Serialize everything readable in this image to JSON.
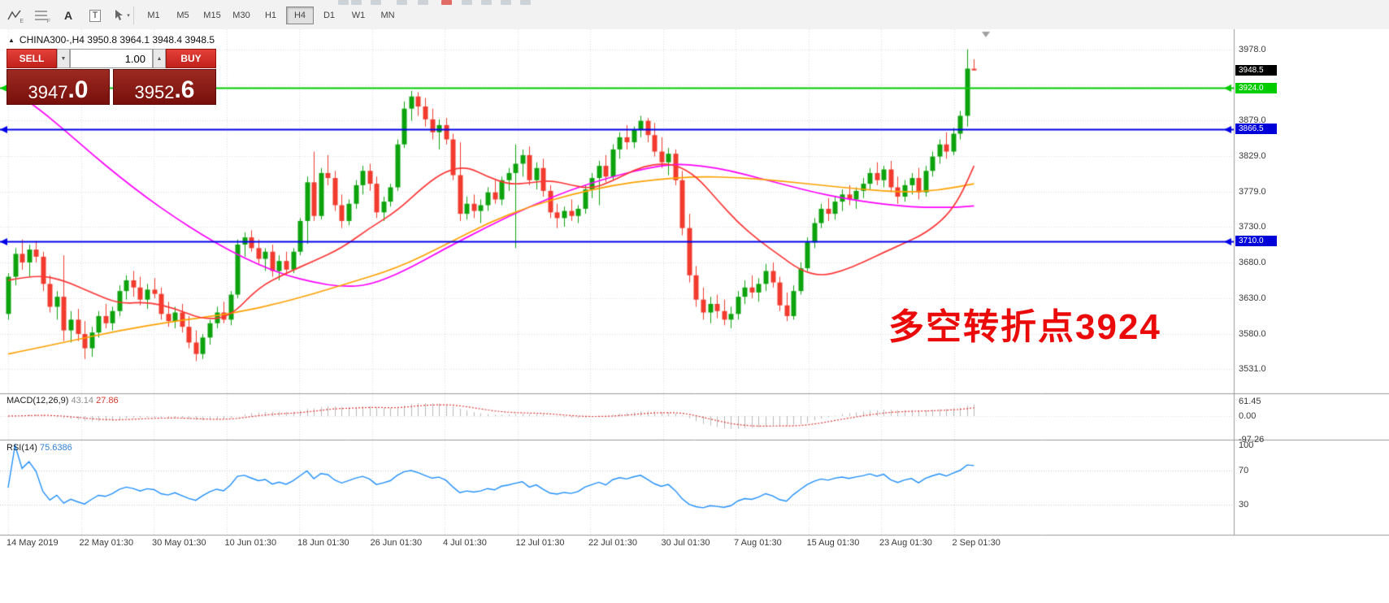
{
  "toolbar": {
    "icons": [
      {
        "name": "indicators",
        "glyph": "E"
      },
      {
        "name": "fibonacci",
        "glyph": "F"
      },
      {
        "name": "text-label",
        "glyph": "A"
      },
      {
        "name": "text-box",
        "glyph": "T"
      },
      {
        "name": "cursor",
        "glyph": ""
      }
    ],
    "dropdown_caret": "▾",
    "timeframes": [
      {
        "label": "M1",
        "active": false
      },
      {
        "label": "M5",
        "active": false
      },
      {
        "label": "M15",
        "active": false
      },
      {
        "label": "M30",
        "active": false
      },
      {
        "label": "H1",
        "active": false
      },
      {
        "label": "H4",
        "active": true
      },
      {
        "label": "D1",
        "active": false
      },
      {
        "label": "W1",
        "active": false
      },
      {
        "label": "MN",
        "active": false
      }
    ]
  },
  "chart": {
    "collapse_glyph": "▲",
    "symbol_header": "CHINA300-,H4  3950.8 3964.1 3948.4 3948.5",
    "trade_panel": {
      "sell_label": "SELL",
      "buy_label": "BUY",
      "volume": "1.00",
      "volume_dropdown_glyph": "▼",
      "volume_up_glyph": "▲",
      "sell_price_main": "3947",
      "sell_price_big": ".0",
      "buy_price_main": "3952",
      "buy_price_big": ".6"
    },
    "annotation": {
      "text": "多空转折点3924",
      "color": "#ea0a0a"
    },
    "price_axis_ticks": [
      "3978.0",
      "3879.0",
      "3829.0",
      "3779.0",
      "3730.0",
      "3680.0",
      "3630.0",
      "3580.0",
      "3531.0"
    ],
    "price_badges": [
      {
        "label": "3948.5",
        "price": 3948.5,
        "bg": "#000000"
      },
      {
        "label": "3924.0",
        "price": 3924.0,
        "bg": "#00cc00"
      },
      {
        "label": "3866.5",
        "price": 3866.5,
        "bg": "#0000d8"
      },
      {
        "label": "3710.0",
        "price": 3710.0,
        "bg": "#0000d8"
      }
    ],
    "hlines": [
      {
        "price": 3924.0,
        "color": "#00cc00",
        "width": 2
      },
      {
        "price": 3866.5,
        "color": "#0000e8",
        "width": 2
      },
      {
        "price": 3710.0,
        "color": "#0000e8",
        "width": 2
      }
    ]
  },
  "macd": {
    "label": "MACD(12,26,9)",
    "value_main": "43.14",
    "value_signal": "27.86",
    "axis": [
      "61.45",
      "0.00",
      "-97.26"
    ]
  },
  "rsi": {
    "label": "RSI(14)",
    "value": "75.6386",
    "axis": [
      "100",
      "70",
      "30"
    ],
    "levels": [
      70,
      30
    ]
  },
  "time_axis": [
    "14 May 2019",
    "22 May 01:30",
    "30 May 01:30",
    "10 Jun 01:30",
    "18 Jun 01:30",
    "26 Jun 01:30",
    "4 Jul 01:30",
    "12 Jul 01:30",
    "22 Jul 01:30",
    "30 Jul 01:30",
    "7 Aug 01:30",
    "15 Aug 01:30",
    "23 Aug 01:30",
    "2 Sep 01:30"
  ],
  "chart_data": {
    "type": "candlestick",
    "title": "CHINA300- H4",
    "price_range": [
      3497,
      4006
    ],
    "grid_prices": [
      3978,
      3929,
      3879,
      3829,
      3779,
      3730,
      3680,
      3630,
      3580,
      3531
    ],
    "colors": {
      "up": "#0ca30c",
      "down": "#f23b2e",
      "grid": "#d9d9d9",
      "ma_long": "#ff00ff",
      "ma_medium": "#ffa000",
      "ma_fast": "#ff3535",
      "macd_hist": "#b8b8b8",
      "macd_signal": "#e03535",
      "rsi": "#1f8fff",
      "separator": "#9a9a9a",
      "shift_marker": "#a0a0a0"
    },
    "macd_params": {
      "fast": 12,
      "slow": 26,
      "signal": 9
    },
    "rsi_period": 14,
    "candles": [
      [
        3608,
        3665,
        3600,
        3660
      ],
      [
        3660,
        3700,
        3648,
        3692
      ],
      [
        3692,
        3712,
        3670,
        3680
      ],
      [
        3680,
        3705,
        3660,
        3698
      ],
      [
        3698,
        3710,
        3680,
        3688
      ],
      [
        3688,
        3695,
        3640,
        3650
      ],
      [
        3650,
        3662,
        3610,
        3618
      ],
      [
        3618,
        3640,
        3600,
        3632
      ],
      [
        3632,
        3690,
        3570,
        3585
      ],
      [
        3585,
        3612,
        3568,
        3600
      ],
      [
        3600,
        3615,
        3570,
        3580
      ],
      [
        3580,
        3598,
        3545,
        3560
      ],
      [
        3560,
        3590,
        3548,
        3582
      ],
      [
        3582,
        3612,
        3575,
        3605
      ],
      [
        3605,
        3622,
        3588,
        3595
      ],
      [
        3595,
        3618,
        3585,
        3612
      ],
      [
        3612,
        3648,
        3605,
        3640
      ],
      [
        3640,
        3662,
        3628,
        3655
      ],
      [
        3655,
        3668,
        3632,
        3645
      ],
      [
        3645,
        3660,
        3620,
        3628
      ],
      [
        3628,
        3650,
        3615,
        3642
      ],
      [
        3642,
        3658,
        3630,
        3636
      ],
      [
        3636,
        3645,
        3600,
        3608
      ],
      [
        3608,
        3625,
        3590,
        3598
      ],
      [
        3598,
        3618,
        3588,
        3610
      ],
      [
        3610,
        3622,
        3582,
        3590
      ],
      [
        3590,
        3605,
        3560,
        3568
      ],
      [
        3568,
        3585,
        3542,
        3552
      ],
      [
        3552,
        3580,
        3545,
        3575
      ],
      [
        3575,
        3600,
        3565,
        3595
      ],
      [
        3595,
        3618,
        3588,
        3610
      ],
      [
        3610,
        3625,
        3595,
        3600
      ],
      [
        3600,
        3640,
        3592,
        3635
      ],
      [
        3635,
        3712,
        3630,
        3705
      ],
      [
        3705,
        3722,
        3688,
        3715
      ],
      [
        3715,
        3725,
        3695,
        3700
      ],
      [
        3700,
        3712,
        3678,
        3685
      ],
      [
        3685,
        3700,
        3668,
        3695
      ],
      [
        3695,
        3705,
        3660,
        3668
      ],
      [
        3668,
        3690,
        3655,
        3682
      ],
      [
        3682,
        3695,
        3662,
        3670
      ],
      [
        3670,
        3700,
        3665,
        3695
      ],
      [
        3695,
        3742,
        3690,
        3738
      ],
      [
        3738,
        3800,
        3706,
        3792
      ],
      [
        3792,
        3835,
        3738,
        3745
      ],
      [
        3745,
        3812,
        3740,
        3805
      ],
      [
        3805,
        3830,
        3788,
        3798
      ],
      [
        3798,
        3808,
        3752,
        3760
      ],
      [
        3760,
        3775,
        3728,
        3738
      ],
      [
        3738,
        3768,
        3732,
        3762
      ],
      [
        3762,
        3795,
        3755,
        3788
      ],
      [
        3788,
        3815,
        3775,
        3808
      ],
      [
        3808,
        3818,
        3780,
        3790
      ],
      [
        3790,
        3800,
        3742,
        3750
      ],
      [
        3750,
        3772,
        3738,
        3765
      ],
      [
        3765,
        3790,
        3758,
        3785
      ],
      [
        3785,
        3852,
        3780,
        3845
      ],
      [
        3845,
        3905,
        3840,
        3895
      ],
      [
        3895,
        3920,
        3878,
        3912
      ],
      [
        3912,
        3918,
        3885,
        3898
      ],
      [
        3898,
        3910,
        3870,
        3880
      ],
      [
        3880,
        3895,
        3852,
        3862
      ],
      [
        3862,
        3880,
        3838,
        3872
      ],
      [
        3872,
        3882,
        3845,
        3852
      ],
      [
        3852,
        3860,
        3795,
        3802
      ],
      [
        3802,
        3848,
        3738,
        3748
      ],
      [
        3748,
        3772,
        3740,
        3762
      ],
      [
        3762,
        3775,
        3742,
        3752
      ],
      [
        3752,
        3768,
        3735,
        3760
      ],
      [
        3760,
        3785,
        3752,
        3778
      ],
      [
        3778,
        3795,
        3762,
        3768
      ],
      [
        3768,
        3800,
        3760,
        3795
      ],
      [
        3795,
        3812,
        3780,
        3805
      ],
      [
        3805,
        3845,
        3700,
        3818
      ],
      [
        3818,
        3838,
        3800,
        3830
      ],
      [
        3830,
        3842,
        3788,
        3795
      ],
      [
        3795,
        3820,
        3782,
        3812
      ],
      [
        3812,
        3825,
        3772,
        3780
      ],
      [
        3780,
        3788,
        3742,
        3750
      ],
      [
        3750,
        3762,
        3728,
        3742
      ],
      [
        3742,
        3758,
        3730,
        3752
      ],
      [
        3752,
        3768,
        3738,
        3745
      ],
      [
        3745,
        3760,
        3735,
        3755
      ],
      [
        3755,
        3788,
        3748,
        3782
      ],
      [
        3782,
        3805,
        3770,
        3798
      ],
      [
        3798,
        3822,
        3760,
        3815
      ],
      [
        3815,
        3830,
        3792,
        3800
      ],
      [
        3800,
        3845,
        3795,
        3838
      ],
      [
        3838,
        3862,
        3825,
        3855
      ],
      [
        3855,
        3872,
        3838,
        3848
      ],
      [
        3848,
        3870,
        3840,
        3865
      ],
      [
        3865,
        3885,
        3855,
        3878
      ],
      [
        3878,
        3882,
        3848,
        3858
      ],
      [
        3858,
        3875,
        3828,
        3835
      ],
      [
        3835,
        3855,
        3812,
        3820
      ],
      [
        3820,
        3840,
        3802,
        3832
      ],
      [
        3832,
        3838,
        3788,
        3795
      ],
      [
        3795,
        3808,
        3718,
        3728
      ],
      [
        3728,
        3748,
        3652,
        3662
      ],
      [
        3662,
        3675,
        3618,
        3628
      ],
      [
        3628,
        3645,
        3600,
        3610
      ],
      [
        3610,
        3632,
        3595,
        3622
      ],
      [
        3622,
        3635,
        3602,
        3612
      ],
      [
        3612,
        3628,
        3592,
        3600
      ],
      [
        3600,
        3618,
        3588,
        3608
      ],
      [
        3608,
        3640,
        3600,
        3632
      ],
      [
        3632,
        3655,
        3622,
        3645
      ],
      [
        3645,
        3662,
        3630,
        3638
      ],
      [
        3638,
        3658,
        3625,
        3650
      ],
      [
        3650,
        3678,
        3640,
        3668
      ],
      [
        3668,
        3680,
        3645,
        3652
      ],
      [
        3652,
        3660,
        3612,
        3620
      ],
      [
        3620,
        3638,
        3598,
        3605
      ],
      [
        3605,
        3648,
        3600,
        3640
      ],
      [
        3640,
        3680,
        3635,
        3672
      ],
      [
        3672,
        3715,
        3668,
        3708
      ],
      [
        3708,
        3742,
        3700,
        3735
      ],
      [
        3735,
        3762,
        3728,
        3755
      ],
      [
        3755,
        3770,
        3738,
        3748
      ],
      [
        3748,
        3772,
        3740,
        3765
      ],
      [
        3765,
        3782,
        3752,
        3775
      ],
      [
        3775,
        3788,
        3760,
        3768
      ],
      [
        3768,
        3785,
        3755,
        3780
      ],
      [
        3780,
        3798,
        3770,
        3790
      ],
      [
        3790,
        3812,
        3782,
        3805
      ],
      [
        3805,
        3820,
        3788,
        3795
      ],
      [
        3795,
        3815,
        3785,
        3810
      ],
      [
        3810,
        3822,
        3778,
        3785
      ],
      [
        3785,
        3800,
        3762,
        3772
      ],
      [
        3772,
        3795,
        3765,
        3788
      ],
      [
        3788,
        3805,
        3775,
        3798
      ],
      [
        3798,
        3812,
        3768,
        3778
      ],
      [
        3778,
        3815,
        3772,
        3808
      ],
      [
        3808,
        3835,
        3800,
        3828
      ],
      [
        3828,
        3852,
        3818,
        3845
      ],
      [
        3845,
        3862,
        3825,
        3835
      ],
      [
        3835,
        3868,
        3830,
        3860
      ],
      [
        3860,
        3892,
        3852,
        3885
      ],
      [
        3885,
        3978,
        3870,
        3951
      ],
      [
        3950.8,
        3964.1,
        3948.4,
        3948.5
      ]
    ],
    "ma_lines": [
      {
        "name": "ma-long",
        "color": "#ff00ff",
        "points": [
          [
            0,
            3925
          ],
          [
            4,
            3898
          ],
          [
            8,
            3866
          ],
          [
            12,
            3832
          ],
          [
            16,
            3800
          ],
          [
            20,
            3770
          ],
          [
            24,
            3743
          ],
          [
            28,
            3718
          ],
          [
            32,
            3696
          ],
          [
            36,
            3677
          ],
          [
            40,
            3662
          ],
          [
            44,
            3652
          ],
          [
            48,
            3646
          ],
          [
            52,
            3648
          ],
          [
            57,
            3668
          ],
          [
            63,
            3700
          ],
          [
            69,
            3730
          ],
          [
            75,
            3758
          ],
          [
            81,
            3782
          ],
          [
            87,
            3800
          ],
          [
            92,
            3812
          ],
          [
            96,
            3818
          ],
          [
            100,
            3815
          ],
          [
            104,
            3808
          ],
          [
            108,
            3798
          ],
          [
            112,
            3788
          ],
          [
            116,
            3778
          ],
          [
            120,
            3770
          ],
          [
            124,
            3764
          ],
          [
            128,
            3759
          ],
          [
            132,
            3757
          ],
          [
            136,
            3757
          ],
          [
            139,
            3759
          ]
        ]
      },
      {
        "name": "ma-medium",
        "color": "#ffa000",
        "points": [
          [
            0,
            3552
          ],
          [
            8,
            3568
          ],
          [
            16,
            3585
          ],
          [
            24,
            3598
          ],
          [
            32,
            3608
          ],
          [
            40,
            3625
          ],
          [
            48,
            3648
          ],
          [
            56,
            3672
          ],
          [
            63,
            3705
          ],
          [
            69,
            3735
          ],
          [
            75,
            3758
          ],
          [
            81,
            3775
          ],
          [
            87,
            3788
          ],
          [
            93,
            3796
          ],
          [
            99,
            3800
          ],
          [
            105,
            3799
          ],
          [
            111,
            3794
          ],
          [
            117,
            3788
          ],
          [
            123,
            3782
          ],
          [
            129,
            3778
          ],
          [
            134,
            3781
          ],
          [
            139,
            3790
          ]
        ]
      },
      {
        "name": "ma-fast",
        "color": "#ff3535",
        "points": [
          [
            0,
            3655
          ],
          [
            4,
            3663
          ],
          [
            8,
            3655
          ],
          [
            12,
            3638
          ],
          [
            16,
            3622
          ],
          [
            20,
            3625
          ],
          [
            24,
            3616
          ],
          [
            28,
            3600
          ],
          [
            32,
            3604
          ],
          [
            36,
            3645
          ],
          [
            40,
            3665
          ],
          [
            44,
            3682
          ],
          [
            48,
            3700
          ],
          [
            52,
            3728
          ],
          [
            56,
            3752
          ],
          [
            60,
            3788
          ],
          [
            63,
            3808
          ],
          [
            66,
            3814
          ],
          [
            69,
            3800
          ],
          [
            72,
            3789
          ],
          [
            75,
            3791
          ],
          [
            78,
            3795
          ],
          [
            81,
            3788
          ],
          [
            84,
            3783
          ],
          [
            87,
            3794
          ],
          [
            90,
            3809
          ],
          [
            93,
            3818
          ],
          [
            96,
            3817
          ],
          [
            99,
            3801
          ],
          [
            102,
            3768
          ],
          [
            105,
            3736
          ],
          [
            108,
            3711
          ],
          [
            111,
            3690
          ],
          [
            114,
            3669
          ],
          [
            117,
            3661
          ],
          [
            120,
            3668
          ],
          [
            123,
            3680
          ],
          [
            126,
            3694
          ],
          [
            129,
            3707
          ],
          [
            132,
            3721
          ],
          [
            135,
            3744
          ],
          [
            137,
            3772
          ],
          [
            139,
            3815
          ]
        ]
      }
    ]
  }
}
